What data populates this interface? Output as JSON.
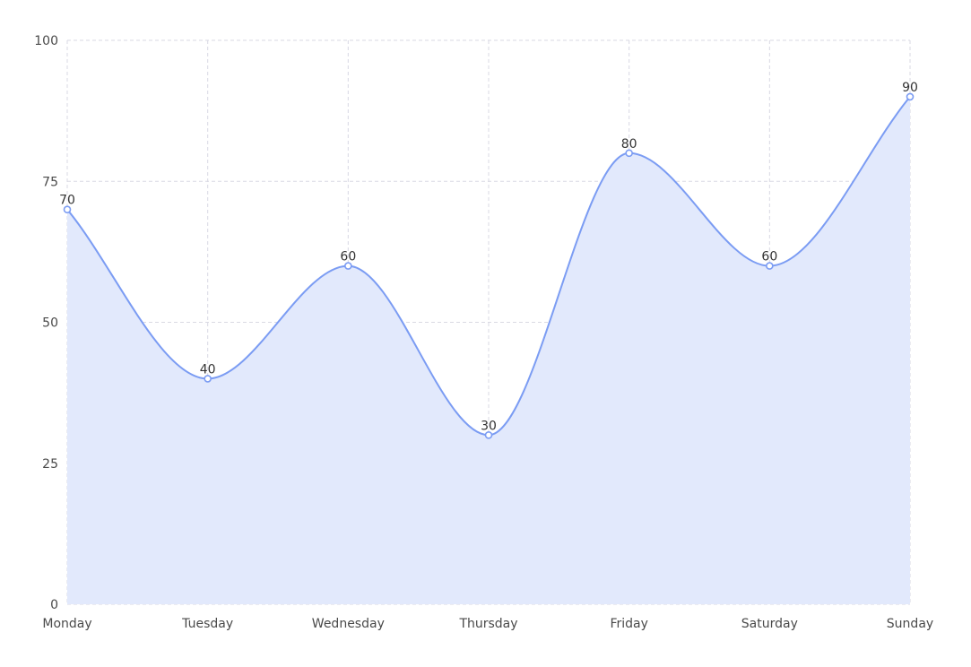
{
  "chart_data": {
    "type": "area",
    "title": "",
    "xlabel": "",
    "ylabel": "",
    "categories": [
      "Monday",
      "Tuesday",
      "Wednesday",
      "Thursday",
      "Friday",
      "Saturday",
      "Sunday"
    ],
    "series": [
      {
        "values": [
          70,
          40,
          60,
          30,
          80,
          60,
          90
        ]
      }
    ],
    "ylim": [
      0,
      100
    ],
    "yticks": [
      0,
      25,
      50,
      75,
      100
    ],
    "grid": true,
    "smooth": true,
    "show_data_labels": true,
    "colors": {
      "line": "#7b9cf3",
      "fill": "#e2e9fc",
      "grid": "#d9d9e3",
      "axis_text": "#4a4a4a",
      "label_text": "#333333"
    }
  }
}
